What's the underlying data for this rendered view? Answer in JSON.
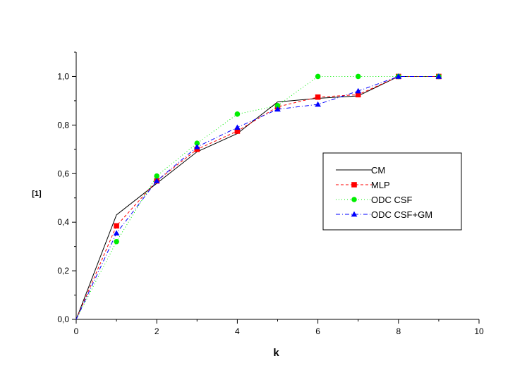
{
  "chart_data": {
    "type": "line",
    "title": "",
    "xlabel": "k",
    "ylabel": "[1]",
    "xlim": [
      0,
      10
    ],
    "ylim": [
      0,
      1.1
    ],
    "x_ticks": [
      0,
      2,
      4,
      6,
      8,
      10
    ],
    "x_tick_labels": [
      "0",
      "2",
      "4",
      "6",
      "8",
      "10"
    ],
    "y_ticks": [
      0,
      0.2,
      0.4,
      0.6,
      0.8,
      1.0
    ],
    "y_tick_labels": [
      "0,0",
      "0,2",
      "0,4",
      "0,6",
      "0,8",
      "1,0"
    ],
    "grid": false,
    "legend_position": "right",
    "x": [
      0,
      1,
      2,
      3,
      4,
      5,
      6,
      7,
      8,
      9
    ],
    "series": [
      {
        "name": "CM",
        "values": [
          0.0,
          0.43,
          0.56,
          0.69,
          0.765,
          0.895,
          0.91,
          0.92,
          1.0,
          1.0
        ],
        "color": "#000000",
        "dash": "",
        "marker": "none"
      },
      {
        "name": "MLP",
        "values": [
          0.0,
          0.385,
          0.57,
          0.7,
          0.775,
          0.875,
          0.915,
          0.925,
          1.0,
          1.0
        ],
        "color": "#ff0000",
        "dash": "4,3",
        "marker": "square"
      },
      {
        "name": "ODC CSF",
        "values": [
          0.0,
          0.32,
          0.59,
          0.725,
          0.845,
          0.88,
          1.0,
          1.0,
          1.0,
          1.0
        ],
        "color": "#00ee00",
        "dash": "1,3",
        "marker": "circle"
      },
      {
        "name": "ODC CSF+GM",
        "values": [
          0.0,
          0.355,
          0.57,
          0.71,
          0.79,
          0.865,
          0.885,
          0.94,
          1.0,
          1.0
        ],
        "color": "#0000ff",
        "dash": "6,3,1,3",
        "marker": "triangle"
      }
    ]
  }
}
